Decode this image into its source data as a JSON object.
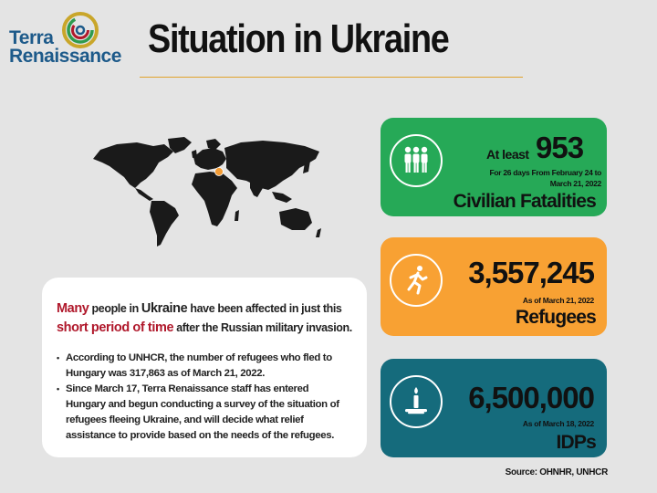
{
  "brand": {
    "line1": "Terra",
    "line2": "Renaissance"
  },
  "title": "Situation in Ukraine",
  "colors": {
    "green": "#26a957",
    "orange": "#f8a133",
    "teal": "#156b7c",
    "highlight": "#b0182b",
    "accent": "#e0a32c"
  },
  "map": {
    "marker_label": "Ukraine location marker"
  },
  "summary": {
    "hl1": "Many",
    "t1": " people in ",
    "bold1": "Ukraine",
    "t2": " have been affected in just this ",
    "hl2": "short period of time",
    "t3": " after the Russian military invasion."
  },
  "bullets": [
    "According to UNHCR, the number of refugees who fled to Hungary was 317,863 as of March 21, 2022.",
    "Since March 17, Terra Renaissance staff has entered Hungary and begun conducting a survey of the situation of refugees fleeing Ukraine, and will decide what relief assistance to provide based on the needs of the refugees."
  ],
  "stats": {
    "fatalities": {
      "prefix": "At least",
      "value": "953",
      "note": "For 26 days From February 24 to March 21, 2022",
      "label": "Civilian Fatalities",
      "icon": "people-icon"
    },
    "refugees": {
      "value": "3,557,245",
      "date": "As of March 21, 2022",
      "label": "Refugees",
      "icon": "running-person-icon"
    },
    "idps": {
      "value": "6,500,000",
      "date": "As of March 18, 2022",
      "label": "IDPs",
      "icon": "candle-icon"
    }
  },
  "source": "Source: OHNHR, UNHCR"
}
